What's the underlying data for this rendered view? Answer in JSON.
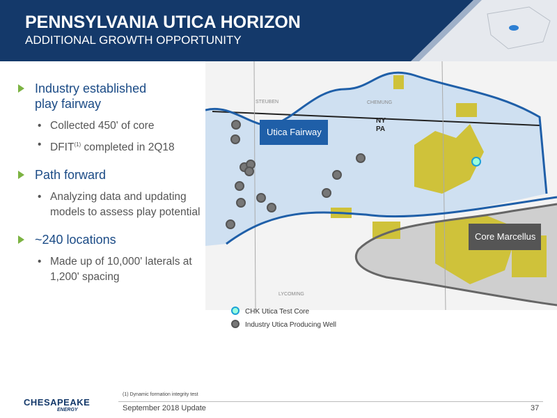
{
  "header": {
    "title": "PENNSYLVANIA UTICA HORIZON",
    "subtitle": "ADDITIONAL GROWTH OPPORTUNITY"
  },
  "bullets": [
    {
      "text": "Industry established play fairway",
      "sub": [
        {
          "text": "Collected 450' of core"
        },
        {
          "text": "DFIT",
          "sup": "(1)",
          "rest": "completed in 2Q18"
        }
      ]
    },
    {
      "text": "Path forward",
      "sub": [
        {
          "text": "Analyzing data and updating models to assess play potential"
        }
      ]
    },
    {
      "text": "~240 locations",
      "sub": [
        {
          "text": "Made up of 10,000' laterals at 1,200' spacing"
        }
      ]
    }
  ],
  "map": {
    "labels": {
      "steuben": "STEUBEN",
      "chemung": "CHEMUNG",
      "lycoming": "LYCOMING",
      "ny": "NY",
      "pa": "PA"
    },
    "callouts": {
      "fairway": "Utica Fairway",
      "core": "Core Marcellus"
    },
    "legend": [
      "CHK Utica Test Core",
      "Industry Utica Producing Well"
    ]
  },
  "footer": {
    "footnote": "(1)  Dynamic formation integrity test",
    "date": "September 2018 Update",
    "page": "37",
    "logo": "CHESAPEAKE",
    "logo_sub": "ENERGY"
  }
}
